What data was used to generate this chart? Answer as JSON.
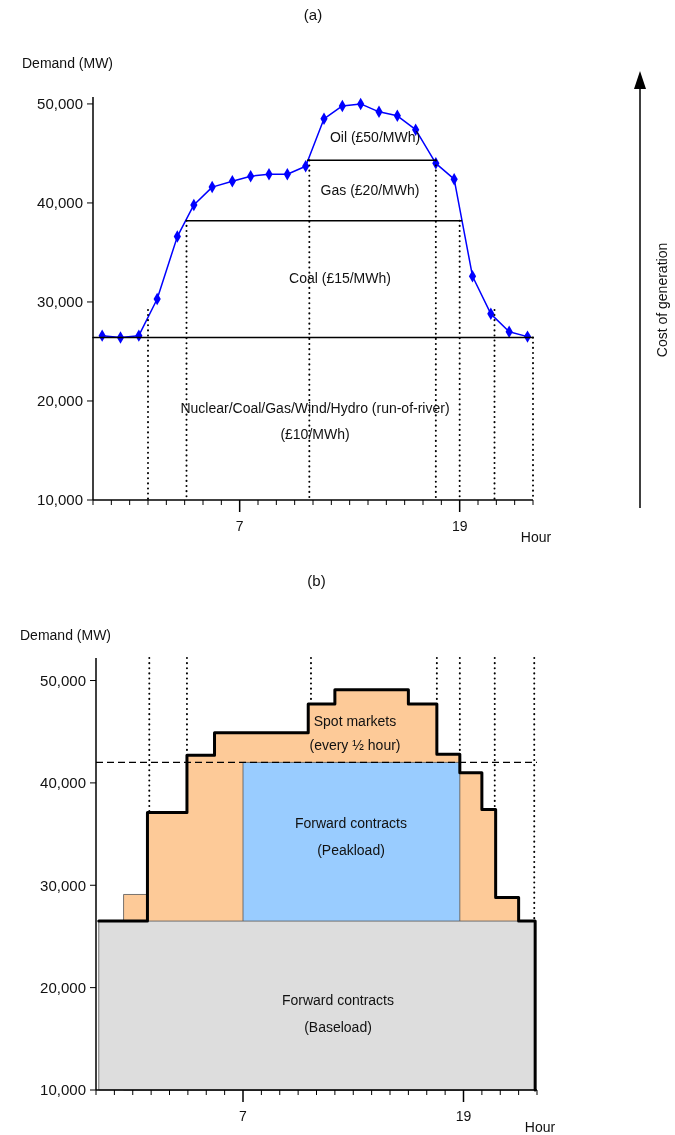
{
  "chart_data": [
    {
      "type": "line",
      "title": "(a)",
      "ylabel": "Demand (MW)",
      "xlabel": "Hour",
      "xlim": [
        -1,
        23
      ],
      "ylim": [
        10000,
        50700
      ],
      "xticks": [
        {
          "value": -1,
          "label": null
        },
        {
          "value": 0,
          "label": null
        },
        {
          "value": 1,
          "label": null
        },
        {
          "value": 2,
          "label": null
        },
        {
          "value": 3,
          "label": null
        },
        {
          "value": 4,
          "label": null
        },
        {
          "value": 5,
          "label": null
        },
        {
          "value": 6,
          "label": null
        },
        {
          "value": 7,
          "label": "7"
        },
        {
          "value": 8,
          "label": null
        },
        {
          "value": 9,
          "label": null
        },
        {
          "value": 10,
          "label": null
        },
        {
          "value": 11,
          "label": null
        },
        {
          "value": 12,
          "label": null
        },
        {
          "value": 13,
          "label": null
        },
        {
          "value": 14,
          "label": null
        },
        {
          "value": 15,
          "label": null
        },
        {
          "value": 16,
          "label": null
        },
        {
          "value": 17,
          "label": null
        },
        {
          "value": 18,
          "label": null
        },
        {
          "value": 19,
          "label": "19"
        },
        {
          "value": 20,
          "label": null
        },
        {
          "value": 21,
          "label": null
        },
        {
          "value": 22,
          "label": null
        },
        {
          "value": 23,
          "label": null
        }
      ],
      "yticks": [
        {
          "value": 10000,
          "label": "10,000"
        },
        {
          "value": 20000,
          "label": "20,000"
        },
        {
          "value": 30000,
          "label": "30,000"
        },
        {
          "value": 40000,
          "label": "40,000"
        },
        {
          "value": 50000,
          "label": "50,000"
        }
      ],
      "series": [
        {
          "color": "#0000ff",
          "marker": "diamond",
          "x": [
            -0.5,
            0.5,
            1.5,
            2.5,
            3.6,
            4.5,
            5.5,
            6.6,
            7.6,
            8.6,
            9.6,
            10.6,
            11.6,
            12.6,
            13.6,
            14.6,
            15.6,
            16.6,
            17.7,
            18.7,
            19.7,
            20.7,
            21.7,
            22.7
          ],
          "values": [
            26600,
            26400,
            26600,
            30300,
            36600,
            39800,
            41600,
            42200,
            42700,
            42900,
            42900,
            43700,
            48500,
            49800,
            50000,
            49200,
            48800,
            47400,
            44000,
            42400,
            32600,
            28800,
            27000,
            26500
          ]
        },
        {
          "color": "#000000",
          "x": [
            -1,
            23
          ],
          "values": [
            26400,
            26400
          ]
        },
        {
          "color": "#000000",
          "x": [
            4.1,
            19.1
          ],
          "values": [
            38200,
            38200
          ]
        },
        {
          "color": "#000000",
          "x": [
            10.7,
            17.7
          ],
          "values": [
            44300,
            44300
          ]
        },
        {
          "color": "#000000",
          "line_style": "dotted",
          "x": [
            2.0,
            2.0
          ],
          "values": [
            29200,
            10000
          ]
        },
        {
          "color": "#000000",
          "line_style": "dotted",
          "x": [
            4.1,
            4.1
          ],
          "values": [
            38200,
            10000
          ]
        },
        {
          "color": "#000000",
          "line_style": "dotted",
          "x": [
            10.8,
            10.8
          ],
          "values": [
            44300,
            10000
          ]
        },
        {
          "color": "#000000",
          "line_style": "dotted",
          "x": [
            17.7,
            17.7
          ],
          "values": [
            44300,
            10000
          ]
        },
        {
          "color": "#000000",
          "line_style": "dotted",
          "x": [
            19.0,
            19.0
          ],
          "values": [
            38200,
            10000
          ]
        },
        {
          "color": "#000000",
          "line_style": "dotted",
          "x": [
            20.9,
            20.9
          ],
          "values": [
            29200,
            10000
          ]
        },
        {
          "color": "#000000",
          "line_style": "dotted",
          "x": [
            23,
            23
          ],
          "values": [
            26400,
            10000
          ]
        }
      ],
      "annotations": [
        "Oil (£50/MWh)",
        "Gas (£20/MWh)",
        "Coal (£15/MWh)",
        "Nuclear/Coal/Gas/Wind/Hydro (run-of-river)",
        "(£10/MWh)",
        "Cost of generation"
      ]
    },
    {
      "type": "line",
      "title": "(b)",
      "ylabel": "Demand (MW)",
      "xlabel": "Hour",
      "xlim": [
        -1,
        23
      ],
      "ylim": [
        10000,
        52200
      ],
      "xticks": [
        {
          "value": -1,
          "label": null
        },
        {
          "value": 0,
          "label": null
        },
        {
          "value": 1,
          "label": null
        },
        {
          "value": 2,
          "label": null
        },
        {
          "value": 3,
          "label": null
        },
        {
          "value": 4,
          "label": null
        },
        {
          "value": 5,
          "label": null
        },
        {
          "value": 6,
          "label": null
        },
        {
          "value": 7,
          "label": "7"
        },
        {
          "value": 8,
          "label": null
        },
        {
          "value": 9,
          "label": null
        },
        {
          "value": 10,
          "label": null
        },
        {
          "value": 11,
          "label": null
        },
        {
          "value": 12,
          "label": null
        },
        {
          "value": 13,
          "label": null
        },
        {
          "value": 14,
          "label": null
        },
        {
          "value": 15,
          "label": null
        },
        {
          "value": 16,
          "label": null
        },
        {
          "value": 17,
          "label": null
        },
        {
          "value": 18,
          "label": null
        },
        {
          "value": 19,
          "label": "19"
        },
        {
          "value": 20,
          "label": null
        },
        {
          "value": 21,
          "label": null
        },
        {
          "value": 22,
          "label": null
        },
        {
          "value": 23,
          "label": null
        }
      ],
      "yticks": [
        {
          "value": 10000,
          "label": "10,000"
        },
        {
          "value": 20000,
          "label": "20,000"
        },
        {
          "value": 30000,
          "label": "30,000"
        },
        {
          "value": 40000,
          "label": "40,000"
        },
        {
          "value": 50000,
          "label": "50,000"
        }
      ],
      "series": [
        {
          "type": "area",
          "color": "#fdca98",
          "x": [
            0.5,
            1.8,
            1.8,
            3.95,
            3.95,
            5.45,
            5.45,
            10.55,
            10.55,
            12,
            12,
            16,
            16,
            17.55,
            17.55,
            18.8,
            18.8,
            20,
            20,
            20.75,
            20.75,
            22
          ],
          "values": [
            29100,
            29100,
            37100,
            37100,
            42700,
            42700,
            44900,
            44900,
            47700,
            47700,
            49100,
            49100,
            47700,
            47700,
            42800,
            42800,
            41000,
            41000,
            37400,
            37400,
            28800,
            28800
          ]
        },
        {
          "type": "area",
          "color": "#99ccff",
          "x": [
            7,
            18.8
          ],
          "values": [
            42000,
            42000
          ]
        },
        {
          "type": "area",
          "color": "#dddddd",
          "x": [
            -0.85,
            22.9
          ],
          "values": [
            26500,
            26500
          ]
        },
        {
          "type": "step",
          "color": "#000000",
          "x": [
            -0.85,
            1.8,
            3.95,
            5.45,
            10.55,
            12,
            16,
            17.55,
            18.8,
            20,
            20.75,
            22,
            22.9
          ],
          "values": [
            26500,
            37100,
            42700,
            44900,
            47700,
            49100,
            47700,
            42800,
            41000,
            37400,
            28800,
            26500,
            10000
          ]
        },
        {
          "color": "#000000",
          "line_style": "dotted",
          "x": [
            1.9,
            1.9
          ],
          "values": [
            52200,
            37100
          ]
        },
        {
          "color": "#000000",
          "line_style": "dotted",
          "x": [
            3.95,
            3.95
          ],
          "values": [
            52200,
            42700
          ]
        },
        {
          "color": "#000000",
          "line_style": "dotted",
          "x": [
            10.7,
            10.7
          ],
          "values": [
            52200,
            47700
          ]
        },
        {
          "color": "#000000",
          "line_style": "dotted",
          "x": [
            17.55,
            17.55
          ],
          "values": [
            52200,
            47700
          ]
        },
        {
          "color": "#000000",
          "line_style": "dotted",
          "x": [
            18.8,
            18.8
          ],
          "values": [
            52200,
            42800
          ]
        },
        {
          "color": "#000000",
          "line_style": "dotted",
          "x": [
            20.7,
            20.7
          ],
          "values": [
            52200,
            37400
          ]
        },
        {
          "color": "#000000",
          "line_style": "dotted",
          "x": [
            22.85,
            22.85
          ],
          "values": [
            52200,
            26500
          ]
        }
      ],
      "ref_lines": [
        {
          "axis": "y",
          "value": 42000,
          "color": "#000000",
          "line_style": "dashed"
        }
      ],
      "annotations": [
        "Spot markets",
        "(every ½ hour)",
        "Forward contracts",
        "(Peakload)",
        "Forward contracts",
        "(Baseload)"
      ]
    }
  ]
}
